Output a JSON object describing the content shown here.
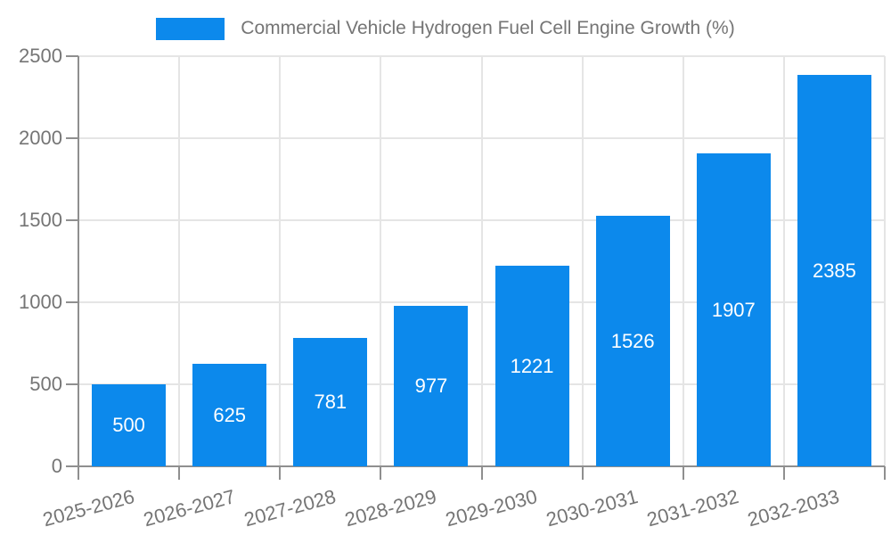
{
  "chart_data": {
    "type": "bar",
    "title": "",
    "legend": [
      "Commercial Vehicle Hydrogen Fuel Cell Engine Growth (%)"
    ],
    "legend_position": "top-center",
    "categories": [
      "2025-2026",
      "2026-2027",
      "2027-2028",
      "2028-2029",
      "2029-2030",
      "2030-2031",
      "2031-2032",
      "2032-2033"
    ],
    "values": [
      500,
      625,
      781,
      977,
      1221,
      1526,
      1907,
      2385
    ],
    "value_labels": [
      "500",
      "625",
      "781",
      "977",
      "1221",
      "1526",
      "1907",
      "2385"
    ],
    "xlabel": "",
    "ylabel": "",
    "ylim": [
      0,
      2500
    ],
    "yticks": [
      "0",
      "500",
      "1000",
      "1500",
      "2000",
      "2500"
    ],
    "grid": "on",
    "x_label_rotation_deg": -15,
    "colors": {
      "bar": "#0c89ec",
      "value_label": "#ffffff",
      "axis": "#8f8f8f",
      "gridline": "#e5e5e5",
      "tick_text": "#757575",
      "legend_text": "#757575",
      "background": "#ffffff"
    }
  }
}
